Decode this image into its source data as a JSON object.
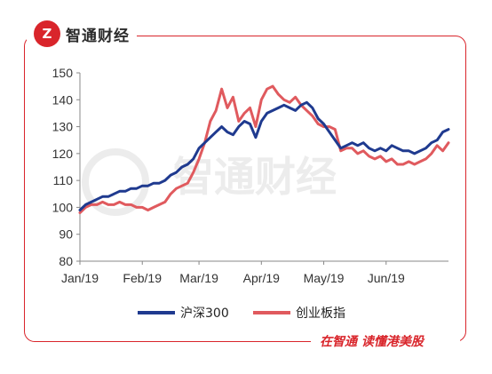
{
  "brand": {
    "mark": "Z",
    "name": "智通财经",
    "slogan": "在智通  读懂港美股",
    "watermark": "智通财经",
    "color": "#d9252b"
  },
  "chart_data": {
    "type": "line",
    "title": "",
    "xlabel": "",
    "ylabel": "",
    "ylim": [
      80,
      150
    ],
    "yticks": [
      80,
      90,
      100,
      110,
      120,
      130,
      140,
      150
    ],
    "xlim": [
      0,
      130
    ],
    "xticks": [
      {
        "label": "Jan/19",
        "pos": 0
      },
      {
        "label": "Feb/19",
        "pos": 22
      },
      {
        "label": "Mar/19",
        "pos": 42
      },
      {
        "label": "Apr/19",
        "pos": 64
      },
      {
        "label": "May/19",
        "pos": 86
      },
      {
        "label": "Jun/19",
        "pos": 108
      }
    ],
    "grid": false,
    "legend": "bottom",
    "series": [
      {
        "name": "沪深300",
        "color": "#1f3a8f",
        "x": [
          0,
          2,
          4,
          6,
          8,
          10,
          12,
          14,
          16,
          18,
          20,
          22,
          24,
          26,
          28,
          30,
          32,
          34,
          36,
          38,
          40,
          42,
          44,
          46,
          48,
          50,
          52,
          54,
          56,
          58,
          60,
          62,
          64,
          66,
          68,
          70,
          72,
          74,
          76,
          78,
          80,
          82,
          84,
          86,
          88,
          90,
          92,
          94,
          96,
          98,
          100,
          102,
          104,
          106,
          108,
          110,
          112,
          114,
          116,
          118,
          120,
          122,
          124,
          126,
          128,
          130
        ],
        "values": [
          99,
          101,
          102,
          103,
          104,
          104,
          105,
          106,
          106,
          107,
          107,
          108,
          108,
          109,
          109,
          110,
          112,
          113,
          115,
          116,
          118,
          122,
          124,
          126,
          128,
          130,
          128,
          127,
          130,
          132,
          131,
          126,
          132,
          135,
          136,
          137,
          138,
          137,
          136,
          138,
          139,
          137,
          133,
          131,
          128,
          125,
          122,
          123,
          124,
          123,
          124,
          122,
          121,
          122,
          121,
          123,
          122,
          121,
          121,
          120,
          121,
          122,
          124,
          125,
          128,
          129
        ]
      },
      {
        "name": "创业板指",
        "color": "#e05a5e",
        "x": [
          0,
          2,
          4,
          6,
          8,
          10,
          12,
          14,
          16,
          18,
          20,
          22,
          24,
          26,
          28,
          30,
          32,
          34,
          36,
          38,
          40,
          42,
          44,
          46,
          48,
          50,
          52,
          54,
          56,
          58,
          60,
          62,
          64,
          66,
          68,
          70,
          72,
          74,
          76,
          78,
          80,
          82,
          84,
          86,
          88,
          90,
          92,
          94,
          96,
          98,
          100,
          102,
          104,
          106,
          108,
          110,
          112,
          114,
          116,
          118,
          120,
          122,
          124,
          126,
          128,
          130
        ],
        "values": [
          98,
          100,
          101,
          101,
          102,
          101,
          101,
          102,
          101,
          101,
          100,
          100,
          99,
          100,
          101,
          102,
          105,
          107,
          108,
          109,
          113,
          118,
          124,
          132,
          136,
          144,
          137,
          141,
          132,
          135,
          137,
          130,
          140,
          144,
          145,
          142,
          140,
          139,
          141,
          138,
          136,
          134,
          131,
          130,
          130,
          129,
          121,
          122,
          122,
          120,
          121,
          119,
          118,
          119,
          117,
          118,
          116,
          116,
          117,
          116,
          117,
          118,
          120,
          123,
          121,
          124
        ]
      }
    ]
  }
}
